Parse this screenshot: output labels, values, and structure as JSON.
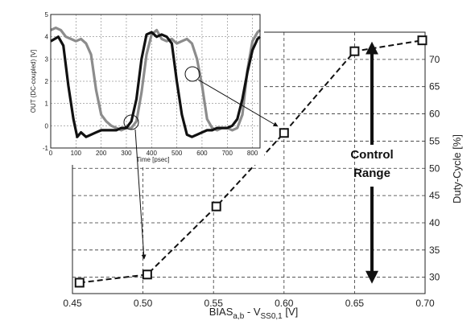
{
  "chart_data": [
    {
      "id": "main",
      "type": "line",
      "xlabel": "BIAS",
      "xlabel_sub": "a,b",
      "xlabel_mid": " - V",
      "xlabel_sub2": "SS0,1",
      "xlabel_unit": " [V]",
      "ylabel": "Duty-Cycle [%]",
      "xlim": [
        0.45,
        0.7
      ],
      "ylim": [
        27,
        75
      ],
      "xticks": [
        "0.45",
        "0.50",
        "0.55",
        "0.60",
        "0.65",
        "0.70"
      ],
      "yticks": [
        "30",
        "35",
        "40",
        "45",
        "50",
        "55",
        "60",
        "65",
        "70"
      ],
      "x": [
        0.455,
        0.503,
        0.552,
        0.6,
        0.65,
        0.698
      ],
      "values": [
        29.0,
        30.5,
        43.0,
        56.5,
        71.5,
        73.5
      ],
      "grid": true,
      "annotation": {
        "line1": "Control",
        "line2": "Range",
        "y_top": 71.5,
        "y_bottom": 30.0
      }
    },
    {
      "id": "inset",
      "type": "line",
      "xlabel": "Time [psec]",
      "ylabel": "OUT (DC-coupled) [V]",
      "xlim": [
        0,
        830
      ],
      "ylim": [
        -1,
        5
      ],
      "xticks": [
        "0",
        "100",
        "200",
        "300",
        "400",
        "500",
        "600",
        "700",
        "800"
      ],
      "yticks": [
        "-1",
        "0",
        "1",
        "2",
        "3",
        "4",
        "5"
      ],
      "grid": true,
      "series": [
        {
          "color": "#111111",
          "x": [
            0,
            30,
            50,
            70,
            90,
            105,
            120,
            140,
            160,
            180,
            200,
            220,
            240,
            260,
            280,
            300,
            320,
            340,
            360,
            380,
            400,
            420,
            440,
            460,
            480,
            500,
            520,
            540,
            560,
            580,
            600,
            620,
            640,
            660,
            680,
            700,
            720,
            740,
            760,
            780,
            800,
            820,
            830
          ],
          "values": [
            3.8,
            4.0,
            3.6,
            1.8,
            0.3,
            -0.5,
            -0.3,
            -0.5,
            -0.4,
            -0.3,
            -0.2,
            -0.2,
            -0.2,
            -0.2,
            -0.1,
            -0.1,
            0.2,
            1.2,
            3.0,
            4.1,
            4.2,
            4.0,
            4.1,
            4.0,
            3.7,
            2.0,
            0.5,
            -0.4,
            -0.5,
            -0.4,
            -0.3,
            -0.2,
            -0.2,
            -0.1,
            -0.1,
            -0.1,
            0.0,
            0.3,
            1.2,
            2.4,
            3.4,
            3.9,
            4.0
          ]
        },
        {
          "color": "#8c8c8c",
          "x": [
            0,
            20,
            40,
            60,
            80,
            100,
            120,
            140,
            160,
            180,
            200,
            220,
            240,
            260,
            280,
            300,
            320,
            340,
            360,
            380,
            400,
            420,
            440,
            460,
            480,
            500,
            520,
            540,
            560,
            580,
            600,
            620,
            640,
            660,
            680,
            700,
            720,
            740,
            760,
            780,
            800,
            820,
            830
          ],
          "values": [
            4.3,
            4.4,
            4.3,
            4.0,
            3.9,
            3.8,
            3.9,
            3.7,
            3.2,
            1.6,
            0.5,
            0.2,
            0.0,
            -0.1,
            -0.2,
            -0.1,
            -0.1,
            0.2,
            1.5,
            3.2,
            4.1,
            4.3,
            3.9,
            3.8,
            3.9,
            3.7,
            3.8,
            3.9,
            3.7,
            3.0,
            1.8,
            0.3,
            -0.1,
            -0.2,
            -0.1,
            -0.1,
            -0.2,
            -0.1,
            0.5,
            2.5,
            3.8,
            4.2,
            4.3
          ]
        }
      ]
    }
  ]
}
